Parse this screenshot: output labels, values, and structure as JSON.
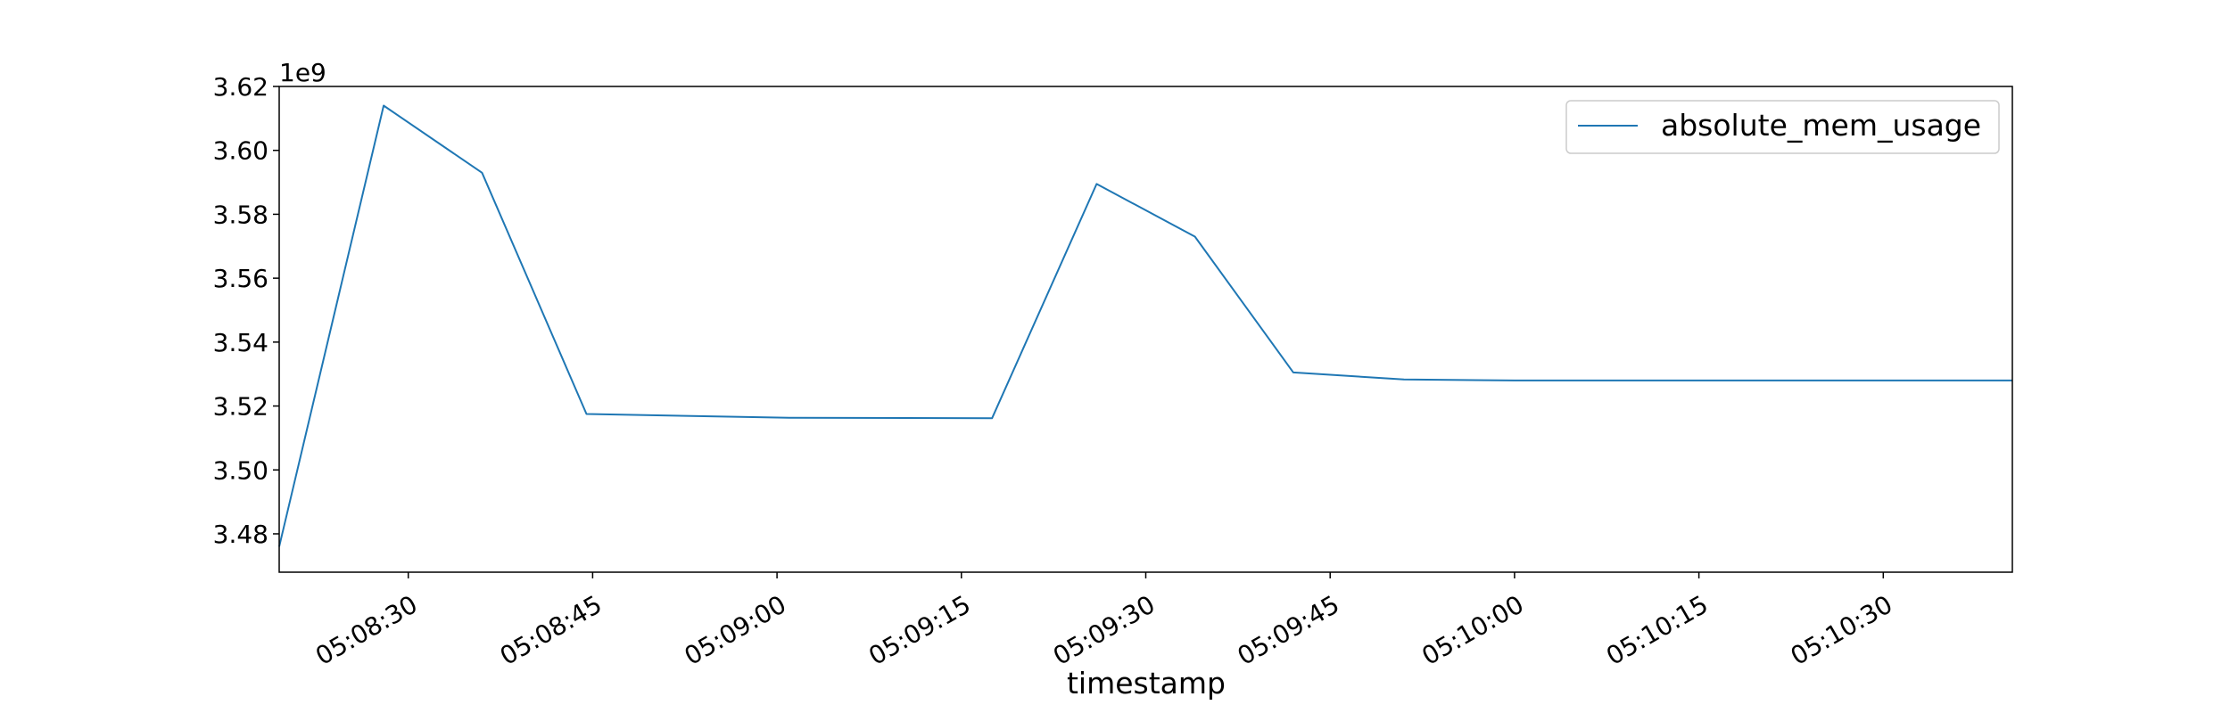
{
  "chart_data": {
    "type": "line",
    "title": "",
    "xlabel": "timestamp",
    "ylabel": "",
    "y_offset_label": "1e9",
    "x_tick_labels": [
      "05:08:30",
      "05:08:45",
      "05:09:00",
      "05:09:15",
      "05:09:30",
      "05:09:45",
      "05:10:00",
      "05:10:15",
      "05:10:30"
    ],
    "y_tick_labels": [
      "3.48",
      "3.50",
      "3.52",
      "3.54",
      "3.56",
      "3.58",
      "3.60",
      "3.62"
    ],
    "y_ticks": [
      3.48,
      3.5,
      3.52,
      3.54,
      3.56,
      3.58,
      3.6,
      3.62
    ],
    "ylim": [
      3.468,
      3.62
    ],
    "xlim": [
      "05:08:19.5",
      "05:10:40.5"
    ],
    "grid": false,
    "legend_position": "top-right",
    "series": [
      {
        "name": "absolute_mem_usage",
        "color": "#1f77b4",
        "x": [
          "05:08:19.5",
          "05:08:28",
          "05:08:36",
          "05:08:44.5",
          "05:09:01",
          "05:09:17.5",
          "05:09:26",
          "05:09:34",
          "05:09:42",
          "05:09:51",
          "05:10:00",
          "05:10:40.5"
        ],
        "y": [
          3.476,
          3.614,
          3.593,
          3.5175,
          3.5163,
          3.5162,
          3.5895,
          3.573,
          3.5305,
          3.5283,
          3.528,
          3.528
        ]
      }
    ]
  }
}
